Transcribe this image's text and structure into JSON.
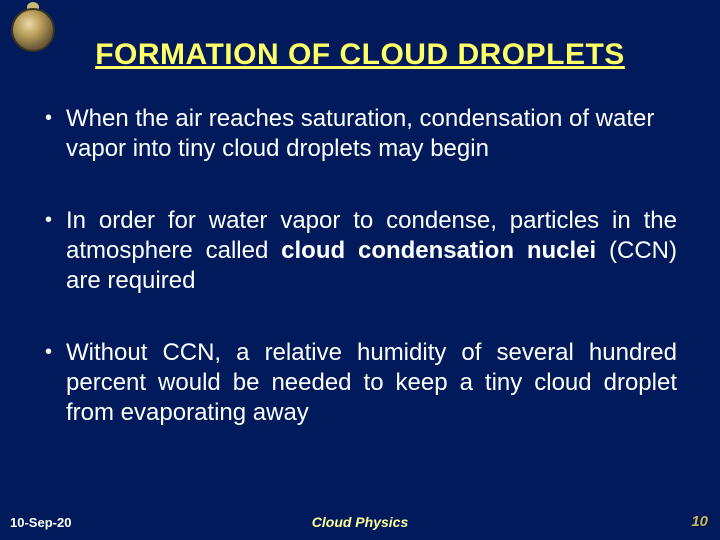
{
  "slide": {
    "background_color": "#001a5c",
    "text_color": "#ffffff",
    "accent_color": "#ffff66",
    "title": "FORMATION OF CLOUD DROPLETS",
    "title_fontsize": 30,
    "body_fontsize": 24,
    "bullets": [
      {
        "text": "When the air reaches saturation, condensation of water vapor into tiny cloud droplets may begin",
        "justified": false
      },
      {
        "text_pre": "In order for water vapor to condense, particles in the atmosphere called ",
        "text_bold": "cloud condensation nuclei",
        "text_post": " (CCN) are required",
        "justified": true
      },
      {
        "text": "Without CCN, a relative humidity of several hundred percent would be needed to keep a tiny cloud droplet from evaporating away",
        "justified": true
      }
    ],
    "footer": {
      "date": "10-Sep-20",
      "center": "Cloud Physics",
      "page": "10"
    }
  }
}
